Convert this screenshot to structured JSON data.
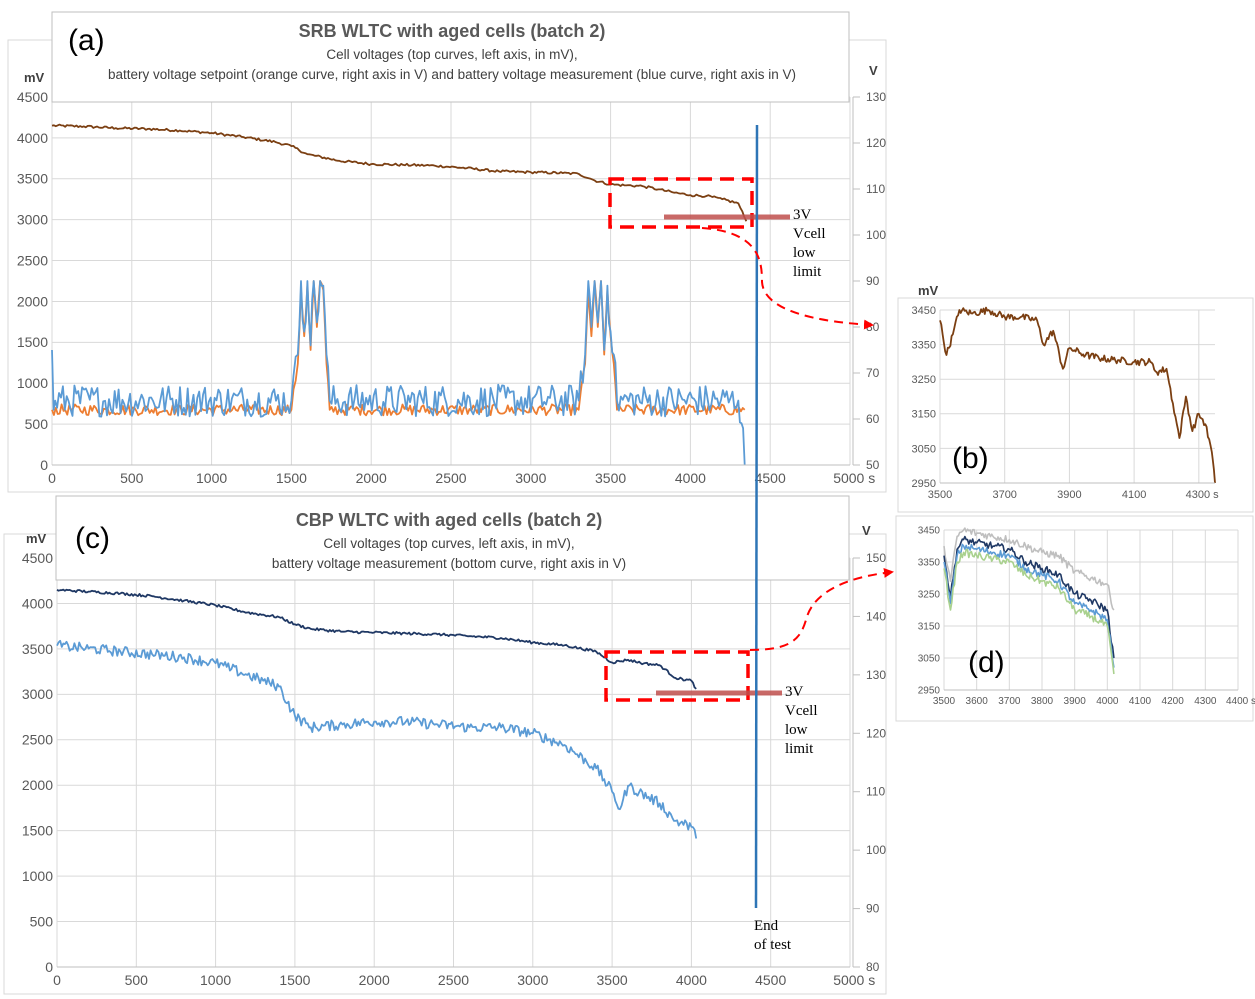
{
  "colors": {
    "cell_brown": "#7B3F12",
    "orange": "#ED7D31",
    "blue": "#5B9BD5",
    "dark_blue": "#1F3864",
    "green": "#A9D18E",
    "grey": "#BFBFBF",
    "red": "#FF0000",
    "marker": "#C0504D",
    "end_line": "#2E75B6",
    "axis_text": "#595959",
    "grid": "#D9D9D9"
  },
  "annotations": {
    "low_limit_a": [
      "3V",
      "Vcell",
      "low",
      "limit"
    ],
    "low_limit_c": [
      "3V",
      "Vcell",
      "low",
      "limit"
    ],
    "end_of_test": [
      "End",
      "of test"
    ]
  },
  "chart_data": [
    {
      "panel": "(a)",
      "type": "line",
      "title": "SRB WLTC with aged cells (batch 2)",
      "subtitle": [
        "Cell voltages (top curves, left axis, in mV),",
        "battery voltage setpoint (orange curve, right axis in V) and battery voltage measurement (blue curve, right axis in V)"
      ],
      "xlabel": "s",
      "ylabel": "mV",
      "y2label": "V",
      "xlim": [
        0,
        5000
      ],
      "ylim": [
        0,
        4500
      ],
      "y2lim": [
        50,
        130
      ],
      "xticks": [
        0,
        500,
        1000,
        1500,
        2000,
        2500,
        3000,
        3500,
        4000,
        4500,
        5000
      ],
      "yticks": [
        0,
        500,
        1000,
        1500,
        2000,
        2500,
        3000,
        3500,
        4000,
        4500
      ],
      "y2ticks": [
        50,
        60,
        70,
        80,
        90,
        100,
        110,
        120,
        130
      ],
      "grid": true,
      "series": [
        {
          "axis": "left",
          "color": "#7B3F12",
          "x": [
            0,
            200,
            400,
            600,
            800,
            1000,
            1200,
            1400,
            1500,
            1600,
            1800,
            2000,
            2200,
            2400,
            2600,
            2800,
            3000,
            3200,
            3300,
            3400,
            3500,
            3600,
            3700,
            3800,
            3900,
            4000,
            4100,
            4200,
            4300,
            4350
          ],
          "y": [
            4150,
            4140,
            4120,
            4110,
            4090,
            4060,
            4010,
            3950,
            3900,
            3800,
            3720,
            3680,
            3670,
            3660,
            3630,
            3590,
            3580,
            3570,
            3560,
            3480,
            3430,
            3420,
            3410,
            3370,
            3330,
            3300,
            3290,
            3250,
            3200,
            2980
          ]
        },
        {
          "axis": "right",
          "color": "#ED7D31",
          "x": [
            0,
            1500,
            1540,
            1560,
            1580,
            1600,
            1620,
            1640,
            1660,
            1680,
            1700,
            1720,
            1740,
            3300,
            3340,
            3360,
            3380,
            3400,
            3420,
            3440,
            3460,
            3480,
            3500,
            3520,
            3540,
            4340
          ],
          "y": [
            62,
            62,
            72,
            88,
            78,
            89,
            75,
            90,
            80,
            90,
            88,
            72,
            62,
            62,
            72,
            88,
            78,
            90,
            80,
            90,
            74,
            88,
            78,
            72,
            62,
            62
          ]
        },
        {
          "axis": "right",
          "color": "#5B9BD5",
          "x": [
            0,
            10,
            20,
            1500,
            1540,
            1560,
            1580,
            1600,
            1620,
            1640,
            1660,
            1680,
            1700,
            1720,
            1740,
            3300,
            3340,
            3360,
            3380,
            3400,
            3420,
            3440,
            3460,
            3480,
            3500,
            3520,
            3540,
            4300,
            4330,
            4340
          ],
          "y": [
            75,
            62,
            64,
            64,
            74,
            90,
            79,
            90,
            76,
            90,
            81,
            90,
            89,
            74,
            64,
            64,
            74,
            90,
            80,
            90,
            81,
            90,
            75,
            89,
            79,
            74,
            64,
            64,
            58,
            50
          ]
        }
      ]
    },
    {
      "panel": "(b)",
      "type": "line",
      "ylabel": "mV",
      "xlabel": "s",
      "xlim": [
        3500,
        4350
      ],
      "ylim": [
        2950,
        3450
      ],
      "xticks": [
        3500,
        3700,
        3900,
        4100,
        4300
      ],
      "yticks": [
        2950,
        3050,
        3150,
        3250,
        3350,
        3450
      ],
      "grid": true,
      "series": [
        {
          "color": "#7B3F12",
          "x": [
            3500,
            3520,
            3540,
            3560,
            3600,
            3650,
            3700,
            3750,
            3800,
            3820,
            3850,
            3880,
            3900,
            3950,
            4000,
            4050,
            4100,
            4150,
            4170,
            4200,
            4220,
            4240,
            4260,
            4280,
            4300,
            4320,
            4340,
            4350
          ],
          "y": [
            3420,
            3320,
            3380,
            3450,
            3440,
            3450,
            3430,
            3430,
            3420,
            3350,
            3390,
            3280,
            3340,
            3320,
            3310,
            3305,
            3300,
            3300,
            3270,
            3280,
            3180,
            3080,
            3200,
            3100,
            3150,
            3120,
            3040,
            2950
          ]
        }
      ]
    },
    {
      "panel": "(c)",
      "type": "line",
      "title": "CBP WLTC with aged cells (batch 2)",
      "subtitle": [
        "Cell voltages (top curves, left axis, in mV),",
        "battery voltage measurement (bottom curve, right axis in V)"
      ],
      "xlabel": "s",
      "ylabel": "mV",
      "y2label": "V",
      "xlim": [
        0,
        5000
      ],
      "ylim": [
        0,
        4500
      ],
      "y2lim": [
        80,
        150
      ],
      "xticks": [
        0,
        500,
        1000,
        1500,
        2000,
        2500,
        3000,
        3500,
        4000,
        4500,
        5000
      ],
      "yticks": [
        0,
        500,
        1000,
        1500,
        2000,
        2500,
        3000,
        3500,
        4000,
        4500
      ],
      "y2ticks": [
        80,
        90,
        100,
        110,
        120,
        130,
        140,
        150
      ],
      "grid": true,
      "series": [
        {
          "axis": "left",
          "color": "#1F3864",
          "x": [
            0,
            200,
            400,
            600,
            800,
            1000,
            1200,
            1400,
            1500,
            1600,
            1800,
            2000,
            2200,
            2400,
            2600,
            2800,
            3000,
            3200,
            3400,
            3500,
            3600,
            3700,
            3800,
            3900,
            4000,
            4030
          ],
          "y": [
            4150,
            4130,
            4110,
            4080,
            4030,
            3980,
            3900,
            3850,
            3770,
            3720,
            3690,
            3680,
            3670,
            3660,
            3640,
            3620,
            3570,
            3540,
            3470,
            3350,
            3380,
            3340,
            3320,
            3180,
            3150,
            3060
          ]
        },
        {
          "axis": "right",
          "color": "#5B9BD5",
          "x": [
            0,
            200,
            400,
            600,
            800,
            1000,
            1100,
            1200,
            1300,
            1400,
            1500,
            1600,
            1800,
            2000,
            2200,
            2400,
            2600,
            2800,
            3000,
            3200,
            3400,
            3500,
            3550,
            3600,
            3800,
            3900,
            4000,
            4030
          ],
          "y": [
            135,
            134.5,
            134,
            133.5,
            133,
            132,
            131,
            130,
            129,
            128,
            123,
            121,
            121.5,
            122,
            122,
            121.5,
            121,
            121,
            120,
            118,
            114,
            110,
            107,
            111,
            108,
            105,
            104,
            102
          ]
        }
      ]
    },
    {
      "panel": "(d)",
      "type": "line",
      "xlabel": "s",
      "xlim": [
        3500,
        4400
      ],
      "ylim": [
        2950,
        3450
      ],
      "xticks": [
        3500,
        3600,
        3700,
        3800,
        3900,
        4000,
        4100,
        4200,
        4300,
        4400
      ],
      "yticks": [
        2950,
        3050,
        3150,
        3250,
        3350,
        3450
      ],
      "grid": true,
      "series": [
        {
          "color": "#BFBFBF",
          "x": [
            3500,
            3520,
            3540,
            3560,
            3600,
            3650,
            3700,
            3750,
            3800,
            3850,
            3900,
            3950,
            4000,
            4020
          ],
          "y": [
            3400,
            3290,
            3430,
            3450,
            3440,
            3430,
            3420,
            3400,
            3380,
            3370,
            3320,
            3300,
            3280,
            3200
          ]
        },
        {
          "color": "#1F3864",
          "x": [
            3500,
            3520,
            3540,
            3560,
            3600,
            3650,
            3700,
            3750,
            3800,
            3850,
            3900,
            3950,
            4000,
            4020
          ],
          "y": [
            3370,
            3240,
            3390,
            3420,
            3410,
            3400,
            3390,
            3350,
            3330,
            3310,
            3250,
            3230,
            3200,
            3050
          ]
        },
        {
          "color": "#5B9BD5",
          "x": [
            3500,
            3520,
            3540,
            3560,
            3600,
            3650,
            3700,
            3750,
            3800,
            3850,
            3900,
            3950,
            4000,
            4020
          ],
          "y": [
            3350,
            3220,
            3370,
            3400,
            3390,
            3380,
            3370,
            3330,
            3310,
            3290,
            3220,
            3200,
            3170,
            3020
          ]
        },
        {
          "color": "#A9D18E",
          "x": [
            3500,
            3520,
            3540,
            3560,
            3600,
            3650,
            3700,
            3750,
            3800,
            3850,
            3900,
            3950,
            4000,
            4020
          ],
          "y": [
            3330,
            3200,
            3350,
            3380,
            3370,
            3360,
            3350,
            3310,
            3290,
            3270,
            3200,
            3180,
            3150,
            3000
          ]
        }
      ]
    }
  ]
}
